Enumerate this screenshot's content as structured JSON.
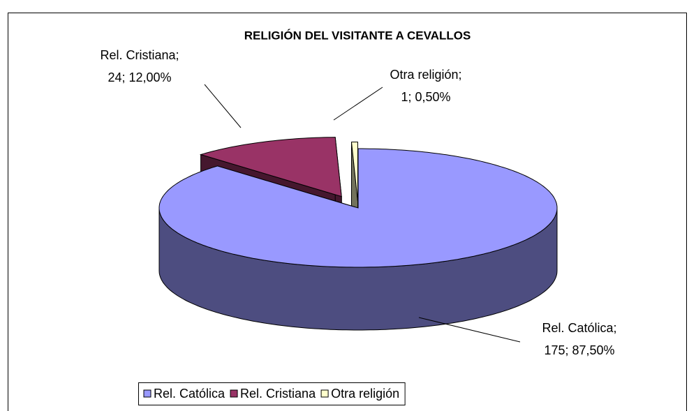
{
  "chart_data": {
    "type": "pie3d",
    "title": "RELIGIÓN DEL VISITANTE A CEVALLOS",
    "categories": [
      "Rel. Católica",
      "Rel. Cristiana",
      "Otra religión"
    ],
    "values": [
      175,
      24,
      1
    ],
    "label_names": [
      "Rel. Católica;",
      "Rel. Cristiana;",
      "Otra religión;"
    ],
    "value_labels": [
      "175; 87,50%",
      "24; 12,00%",
      "1; 0,50%"
    ],
    "colors": [
      "#9999ff",
      "#993366",
      "#ffffcc"
    ],
    "legend": "bottom"
  }
}
